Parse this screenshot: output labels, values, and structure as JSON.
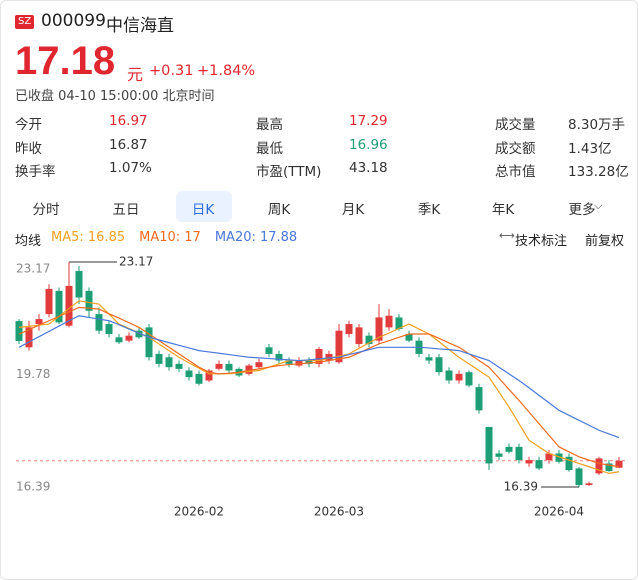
{
  "header": {
    "market": "SZ",
    "code": "000099",
    "name": "中信海直"
  },
  "quote": {
    "price": 17.18,
    "unit": "元",
    "change": "+0.31",
    "change_pct": "+1.84%",
    "status": "已收盘 04-10 15:00:00 北京时间"
  },
  "stats": [
    [
      {
        "label": "今开",
        "value": "16.97",
        "color": "#e0262e"
      },
      {
        "label": "最高",
        "value": "17.29",
        "color": "#e0262e"
      },
      {
        "label": "成交量",
        "value": "8.30万手"
      }
    ],
    [
      {
        "label": "昨收",
        "value": "16.87"
      },
      {
        "label": "最低",
        "value": "16.96",
        "color": "#1e9e74"
      },
      {
        "label": "成交额",
        "value": "1.43亿"
      }
    ],
    [
      {
        "label": "换手率",
        "value": "1.07%"
      },
      {
        "label": "市盈(TTM)",
        "value": "43.18"
      },
      {
        "label": "总市值",
        "value": "133.28亿"
      }
    ]
  ],
  "tabs": {
    "items": [
      "分时",
      "五日",
      "日K",
      "周K",
      "月K",
      "季K",
      "年K",
      "更多"
    ],
    "selected": 2
  },
  "indicator_bar": {
    "label": "均线",
    "tools": [
      "技术标注",
      "前复权"
    ]
  },
  "chart_data": {
    "type": "candlestick",
    "categories": [
      null,
      null,
      null,
      null,
      null,
      null,
      null,
      null,
      null,
      null,
      null,
      null,
      null,
      null,
      null,
      null,
      null,
      null,
      "2026-02",
      null,
      null,
      null,
      null,
      null,
      null,
      null,
      null,
      null,
      null,
      null,
      null,
      null,
      "2026-03",
      null,
      null,
      null,
      null,
      null,
      null,
      null,
      null,
      null,
      null,
      null,
      null,
      null,
      null,
      null,
      null,
      null,
      null,
      null,
      null,
      null,
      "2026-04",
      null,
      null,
      null,
      null,
      null,
      null
    ],
    "open": [
      21.39,
      20.6,
      21.3,
      21.6,
      22.3,
      21.25,
      22.9,
      22.3,
      21.6,
      21.3,
      20.9,
      20.8,
      21.1,
      21.2,
      20.4,
      20.3,
      20.1,
      19.9,
      19.8,
      19.6,
      19.95,
      20.1,
      19.95,
      19.8,
      20.0,
      20.6,
      20.4,
      20.2,
      20.05,
      20.2,
      20.1,
      20.2,
      20.15,
      21.0,
      20.7,
      20.95,
      20.8,
      21.2,
      21.5,
      21.0,
      20.8,
      20.3,
      20.3,
      19.9,
      19.6,
      19.85,
      19.4,
      18.2,
      17.4,
      17.6,
      17.6,
      17.1,
      17.2,
      17.2,
      17.4,
      17.3,
      16.95,
      16.45,
      16.8,
      17.1,
      16.97
    ],
    "high": [
      21.45,
      21.4,
      21.6,
      22.5,
      22.4,
      23.17,
      23.05,
      22.4,
      21.8,
      21.4,
      21.0,
      21.05,
      21.2,
      21.3,
      20.5,
      20.4,
      20.2,
      20.0,
      19.9,
      19.95,
      20.2,
      20.2,
      20.0,
      20.1,
      20.25,
      20.7,
      20.5,
      20.3,
      20.3,
      20.3,
      20.6,
      20.5,
      21.3,
      21.4,
      21.3,
      21.05,
      21.9,
      21.75,
      21.6,
      21.1,
      20.9,
      20.4,
      20.4,
      20.0,
      19.9,
      19.9,
      19.5,
      18.2,
      17.5,
      17.7,
      17.7,
      17.3,
      17.3,
      17.5,
      17.5,
      17.4,
      17.0,
      16.55,
      17.3,
      17.2,
      17.29
    ],
    "low": [
      20.7,
      20.5,
      21.1,
      21.5,
      21.3,
      21.2,
      21.9,
      21.5,
      21.0,
      20.9,
      20.7,
      20.75,
      20.85,
      20.2,
      20.0,
      19.9,
      19.85,
      19.6,
      19.45,
      19.55,
      19.9,
      19.8,
      19.7,
      19.75,
      19.95,
      20.3,
      20.1,
      20.0,
      20.0,
      20.0,
      20.0,
      20.1,
      20.1,
      20.9,
      20.6,
      20.6,
      20.7,
      21.1,
      21.1,
      20.75,
      20.3,
      20.1,
      19.75,
      19.5,
      19.5,
      19.4,
      18.6,
      16.9,
      17.2,
      17.4,
      17.1,
      17.0,
      16.9,
      17.1,
      17.1,
      16.85,
      16.39,
      16.42,
      16.75,
      16.85,
      16.96
    ],
    "close": [
      20.79,
      21.2,
      21.45,
      22.36,
      21.35,
      22.45,
      22.1,
      21.7,
      21.1,
      21.0,
      20.75,
      20.95,
      20.9,
      20.3,
      20.1,
      20.0,
      19.95,
      19.7,
      19.5,
      19.9,
      20.1,
      19.9,
      19.75,
      20.05,
      20.15,
      20.4,
      20.2,
      20.1,
      20.2,
      20.1,
      20.55,
      20.4,
      21.1,
      21.3,
      21.2,
      20.7,
      21.5,
      21.55,
      21.15,
      20.8,
      20.4,
      20.2,
      19.85,
      19.6,
      19.8,
      19.45,
      18.7,
      17.1,
      17.3,
      17.45,
      17.2,
      17.2,
      16.95,
      17.4,
      17.15,
      16.9,
      16.45,
      16.5,
      17.25,
      16.87,
      17.18
    ],
    "series": [
      {
        "name": "MA5: 16.85",
        "color": "#f0a020",
        "values": [
          21.2,
          21.23,
          21.27,
          21.3,
          21.53,
          21.77,
          22.0,
          21.95,
          21.9,
          21.6,
          21.3,
          21.17,
          21.03,
          20.9,
          20.7,
          20.5,
          20.3,
          20.13,
          19.97,
          19.8,
          19.8,
          19.8,
          19.83,
          19.87,
          19.9,
          20.0,
          20.1,
          20.2,
          20.2,
          20.2,
          20.2,
          20.27,
          20.33,
          20.4,
          20.57,
          20.73,
          20.9,
          21.03,
          21.17,
          21.3,
          21.15,
          21.0,
          20.77,
          20.53,
          20.3,
          20.1,
          19.9,
          19.7,
          19.25,
          18.8,
          18.3,
          17.8,
          17.6,
          17.4,
          17.3,
          17.2,
          17.1,
          17.0,
          16.9,
          16.8,
          16.85
        ]
      },
      {
        "name": "MA10: 17",
        "color": "#f06a1e",
        "values": [
          21.0,
          21.13,
          21.27,
          21.4,
          21.53,
          21.67,
          21.8,
          21.78,
          21.75,
          21.61,
          21.48,
          21.34,
          21.2,
          21.0,
          20.8,
          20.6,
          20.4,
          20.2,
          20.0,
          19.85,
          19.8,
          19.82,
          19.85,
          19.9,
          19.95,
          20.0,
          20.05,
          20.08,
          20.1,
          20.13,
          20.15,
          20.2,
          20.25,
          20.3,
          20.43,
          20.57,
          20.7,
          20.8,
          20.9,
          21.0,
          21.0,
          21.0,
          20.87,
          20.73,
          20.6,
          20.4,
          20.2,
          20.0,
          19.67,
          19.33,
          19.0,
          18.65,
          18.3,
          17.95,
          17.6,
          17.45,
          17.3,
          17.2,
          17.1,
          17.05,
          17.0
        ]
      },
      {
        "name": "MA20: 17.88",
        "color": "#4a78d8",
        "values": [
          20.6,
          20.76,
          20.92,
          21.08,
          21.24,
          21.4,
          21.55,
          21.5,
          21.45,
          21.4,
          21.28,
          21.15,
          21.03,
          20.9,
          20.82,
          20.74,
          20.66,
          20.58,
          20.5,
          20.46,
          20.42,
          20.38,
          20.34,
          20.3,
          20.28,
          20.26,
          20.24,
          20.22,
          20.2,
          20.22,
          20.25,
          20.28,
          20.3,
          20.38,
          20.45,
          20.53,
          20.6,
          20.6,
          20.6,
          20.6,
          20.6,
          20.58,
          20.55,
          20.53,
          20.5,
          20.4,
          20.3,
          20.2,
          20.0,
          19.8,
          19.6,
          19.38,
          19.15,
          18.93,
          18.7,
          18.55,
          18.4,
          18.25,
          18.1,
          17.99,
          17.88
        ]
      }
    ],
    "up_color": "#e23b3b",
    "down_color": "#1e9e74",
    "ylim": [
      16.39,
      23.17
    ],
    "yticks": [
      23.17,
      19.78,
      16.39
    ],
    "high_label": 23.17,
    "low_label": 16.39
  }
}
